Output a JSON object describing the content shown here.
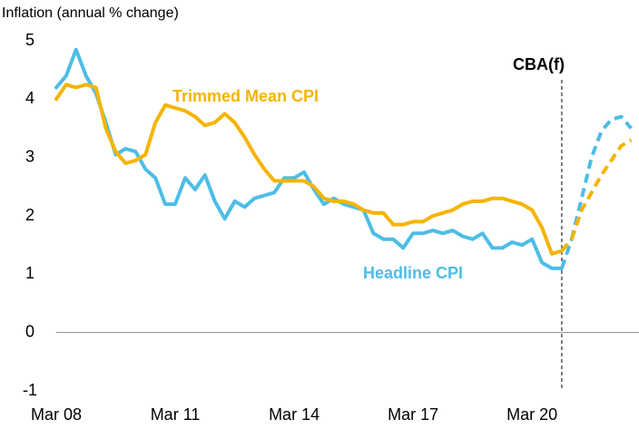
{
  "chart_data": {
    "type": "line",
    "y_label": "Inflation (annual % change)",
    "forecast_label": "CBA(f)",
    "categories": [
      "Mar 08",
      null,
      null,
      null,
      null,
      null,
      null,
      null,
      null,
      null,
      null,
      null,
      "Mar 11",
      null,
      null,
      null,
      null,
      null,
      null,
      null,
      null,
      null,
      null,
      null,
      "Mar 14",
      null,
      null,
      null,
      null,
      null,
      null,
      null,
      null,
      null,
      null,
      null,
      "Mar 17",
      null,
      null,
      null,
      null,
      null,
      null,
      null,
      null,
      null,
      null,
      null,
      "Mar 20",
      null,
      null,
      null,
      null,
      null,
      null,
      null,
      null,
      null,
      null
    ],
    "series": [
      {
        "name": "Headline CPI",
        "color": "#4dbde6",
        "values": [
          4.2,
          4.4,
          4.85,
          4.4,
          4.1,
          3.6,
          3.05,
          3.15,
          3.1,
          2.8,
          2.65,
          2.2,
          2.2,
          2.65,
          2.45,
          2.7,
          2.25,
          1.95,
          2.25,
          2.15,
          2.3,
          2.35,
          2.4,
          2.65,
          2.65,
          2.75,
          2.45,
          2.2,
          2.3,
          2.2,
          2.15,
          2.1,
          1.7,
          1.6,
          1.6,
          1.45,
          1.7,
          1.7,
          1.75,
          1.7,
          1.75,
          1.65,
          1.6,
          1.7,
          1.45,
          1.45,
          1.55,
          1.5,
          1.6,
          1.2,
          1.1,
          1.1,
          null,
          null,
          null,
          null,
          null,
          null,
          null
        ],
        "forecast": [
          null,
          null,
          null,
          null,
          null,
          null,
          null,
          null,
          null,
          null,
          null,
          null,
          null,
          null,
          null,
          null,
          null,
          null,
          null,
          null,
          null,
          null,
          null,
          null,
          null,
          null,
          null,
          null,
          null,
          null,
          null,
          null,
          null,
          null,
          null,
          null,
          null,
          null,
          null,
          null,
          null,
          null,
          null,
          null,
          null,
          null,
          null,
          null,
          null,
          null,
          null,
          null,
          1.6,
          2.3,
          3.0,
          3.45,
          3.65,
          3.7,
          3.5
        ]
      },
      {
        "name": "Trimmed Mean CPI",
        "color": "#f5b400",
        "values": [
          4.0,
          4.25,
          4.2,
          4.25,
          4.2,
          3.5,
          3.1,
          2.9,
          2.95,
          3.05,
          3.6,
          3.9,
          3.85,
          3.8,
          3.7,
          3.55,
          3.6,
          3.75,
          3.6,
          3.35,
          3.05,
          2.8,
          2.6,
          2.6,
          2.6,
          2.6,
          2.5,
          2.3,
          2.25,
          2.25,
          2.2,
          2.1,
          2.05,
          2.05,
          1.85,
          1.85,
          1.9,
          1.9,
          2.0,
          2.05,
          2.1,
          2.2,
          2.25,
          2.25,
          2.3,
          2.3,
          2.25,
          2.2,
          2.1,
          1.8,
          1.35,
          1.4,
          null,
          null,
          null,
          null,
          null,
          null,
          null
        ],
        "forecast": [
          null,
          null,
          null,
          null,
          null,
          null,
          null,
          null,
          null,
          null,
          null,
          null,
          null,
          null,
          null,
          null,
          null,
          null,
          null,
          null,
          null,
          null,
          null,
          null,
          null,
          null,
          null,
          null,
          null,
          null,
          null,
          null,
          null,
          null,
          null,
          null,
          null,
          null,
          null,
          null,
          null,
          null,
          null,
          null,
          null,
          null,
          null,
          null,
          null,
          null,
          null,
          null,
          1.6,
          2.1,
          2.4,
          2.7,
          2.95,
          3.2,
          3.3
        ]
      }
    ],
    "ylim": [
      -1,
      5
    ],
    "yticks": [
      -1,
      0,
      1,
      2,
      3,
      4,
      5
    ]
  }
}
